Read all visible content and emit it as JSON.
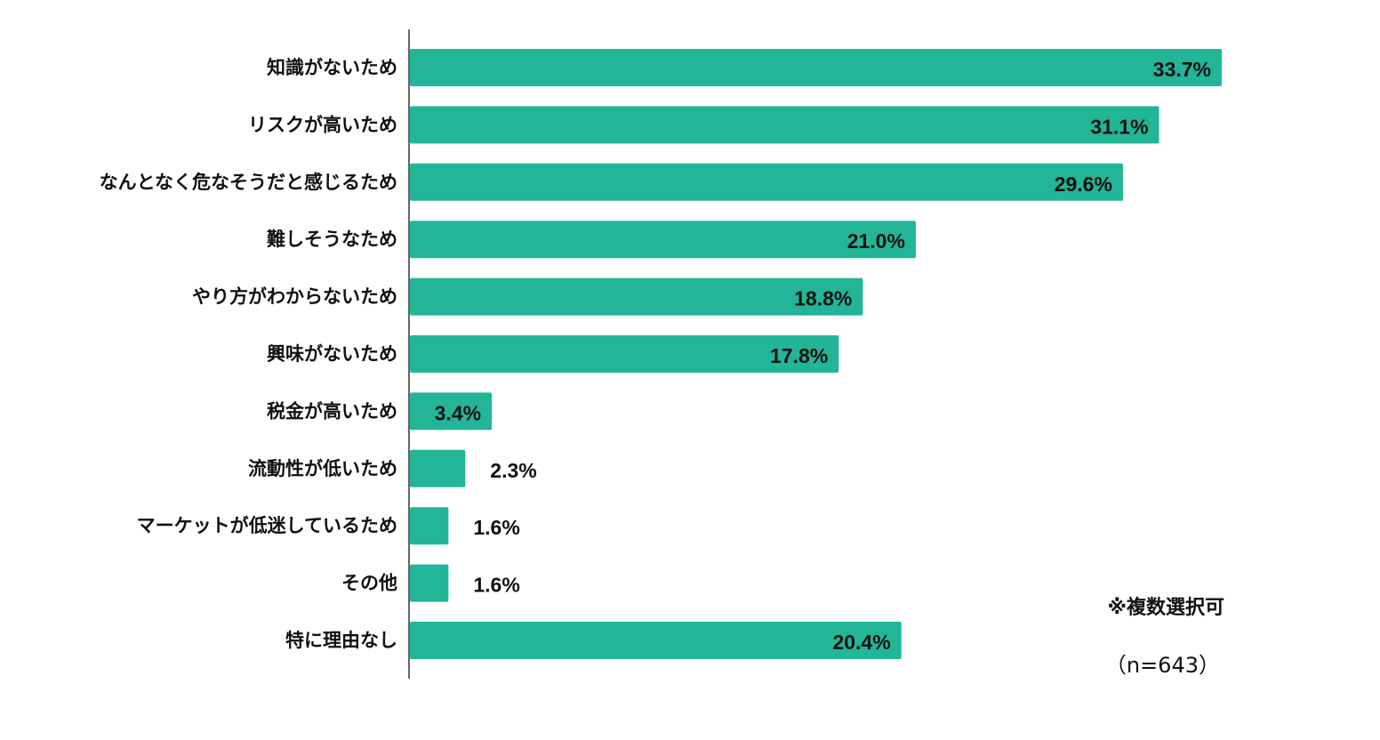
{
  "chart_data": {
    "type": "bar",
    "orientation": "horizontal",
    "categories": [
      "知識がないため",
      "リスクが高いため",
      "なんとなく危なそうだと感じるため",
      "難しそうなため",
      "やり方がわからないため",
      "興味がないため",
      "税金が高いため",
      "流動性が低いため",
      "マーケットが低迷しているため",
      "その他",
      "特に理由なし"
    ],
    "values": [
      33.7,
      31.1,
      29.6,
      21.0,
      18.8,
      17.8,
      3.4,
      2.3,
      1.6,
      1.6,
      20.4
    ],
    "value_labels": [
      "33.7%",
      "31.1%",
      "29.6%",
      "21.0%",
      "18.8%",
      "17.8%",
      "3.4%",
      "2.3%",
      "1.6%",
      "1.6%",
      "20.4%"
    ],
    "xlim": [
      0,
      40
    ],
    "grid": false,
    "bar_color": "#22b598"
  },
  "notes": {
    "multiple_choice": "※複数選択可",
    "sample_size": "（n=643）"
  }
}
